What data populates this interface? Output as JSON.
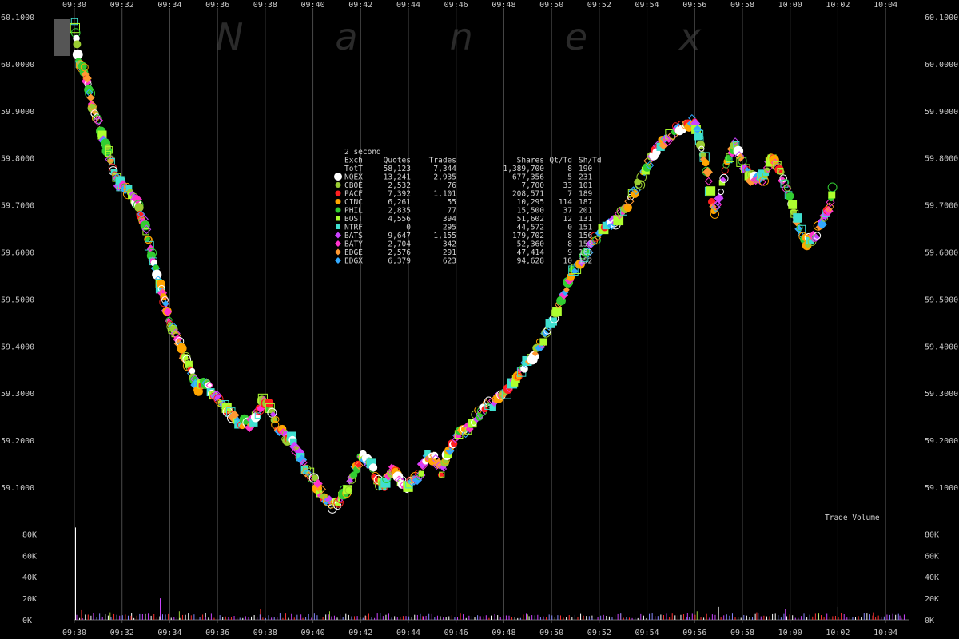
{
  "chart_data": {
    "type": "scatter",
    "watermark": "Nanex",
    "x_ticks": [
      "09:30",
      "09:32",
      "09:34",
      "09:36",
      "09:38",
      "09:40",
      "09:42",
      "09:44",
      "09:46",
      "09:48",
      "09:50",
      "09:52",
      "09:54",
      "09:56",
      "09:58",
      "10:00",
      "10:02",
      "10:04"
    ],
    "xlim_minutes": [
      0,
      35
    ],
    "y_ticks": [
      "60.1000",
      "60.0000",
      "59.9000",
      "59.8000",
      "59.7000",
      "59.6000",
      "59.5000",
      "59.4000",
      "59.3000",
      "59.2000",
      "59.1000"
    ],
    "ylim": [
      59.0,
      60.1
    ],
    "grid": true,
    "price_path": [
      [
        0.0,
        60.09
      ],
      [
        0.2,
        60.0
      ],
      [
        0.4,
        59.99
      ],
      [
        0.6,
        59.95
      ],
      [
        0.8,
        59.9
      ],
      [
        1.0,
        59.88
      ],
      [
        1.2,
        59.84
      ],
      [
        1.4,
        59.82
      ],
      [
        1.6,
        59.78
      ],
      [
        1.8,
        59.75
      ],
      [
        2.0,
        59.74
      ],
      [
        2.3,
        59.73
      ],
      [
        2.6,
        59.71
      ],
      [
        2.8,
        59.68
      ],
      [
        3.0,
        59.65
      ],
      [
        3.2,
        59.6
      ],
      [
        3.4,
        59.57
      ],
      [
        3.6,
        59.53
      ],
      [
        3.8,
        59.49
      ],
      [
        4.0,
        59.45
      ],
      [
        4.2,
        59.43
      ],
      [
        4.5,
        59.39
      ],
      [
        4.8,
        59.36
      ],
      [
        5.0,
        59.33
      ],
      [
        5.2,
        59.31
      ],
      [
        5.5,
        59.32
      ],
      [
        5.8,
        59.3
      ],
      [
        6.0,
        59.29
      ],
      [
        6.3,
        59.27
      ],
      [
        6.6,
        59.25
      ],
      [
        7.0,
        59.24
      ],
      [
        7.3,
        59.23
      ],
      [
        7.6,
        59.25
      ],
      [
        7.9,
        59.28
      ],
      [
        8.2,
        59.27
      ],
      [
        8.5,
        59.23
      ],
      [
        8.8,
        59.21
      ],
      [
        9.1,
        59.2
      ],
      [
        9.4,
        59.17
      ],
      [
        9.7,
        59.14
      ],
      [
        10.0,
        59.12
      ],
      [
        10.3,
        59.09
      ],
      [
        10.6,
        59.07
      ],
      [
        10.9,
        59.06
      ],
      [
        11.2,
        59.08
      ],
      [
        11.5,
        59.1
      ],
      [
        11.8,
        59.14
      ],
      [
        12.1,
        59.17
      ],
      [
        12.4,
        59.15
      ],
      [
        12.7,
        59.11
      ],
      [
        13.0,
        59.1
      ],
      [
        13.3,
        59.14
      ],
      [
        13.6,
        59.12
      ],
      [
        13.9,
        59.1
      ],
      [
        14.2,
        59.11
      ],
      [
        14.5,
        59.13
      ],
      [
        14.8,
        59.17
      ],
      [
        15.1,
        59.16
      ],
      [
        15.4,
        59.13
      ],
      [
        15.7,
        59.18
      ],
      [
        16.0,
        59.21
      ],
      [
        16.4,
        59.22
      ],
      [
        16.8,
        59.25
      ],
      [
        17.2,
        59.27
      ],
      [
        17.6,
        59.28
      ],
      [
        18.0,
        59.3
      ],
      [
        18.4,
        59.32
      ],
      [
        18.8,
        59.35
      ],
      [
        19.2,
        59.38
      ],
      [
        19.6,
        59.41
      ],
      [
        20.0,
        59.45
      ],
      [
        20.4,
        59.5
      ],
      [
        20.8,
        59.55
      ],
      [
        21.2,
        59.58
      ],
      [
        21.6,
        59.61
      ],
      [
        22.0,
        59.64
      ],
      [
        22.4,
        59.66
      ],
      [
        22.8,
        59.67
      ],
      [
        23.2,
        59.7
      ],
      [
        23.6,
        59.74
      ],
      [
        24.0,
        59.78
      ],
      [
        24.4,
        59.82
      ],
      [
        24.8,
        59.84
      ],
      [
        25.2,
        59.86
      ],
      [
        25.6,
        59.87
      ],
      [
        26.0,
        59.88
      ],
      [
        26.2,
        59.84
      ],
      [
        26.5,
        59.78
      ],
      [
        26.8,
        59.68
      ],
      [
        27.1,
        59.73
      ],
      [
        27.4,
        59.8
      ],
      [
        27.7,
        59.83
      ],
      [
        28.0,
        59.79
      ],
      [
        28.3,
        59.76
      ],
      [
        28.6,
        59.75
      ],
      [
        28.9,
        59.76
      ],
      [
        29.2,
        59.8
      ],
      [
        29.5,
        59.78
      ],
      [
        29.8,
        59.74
      ],
      [
        30.1,
        59.7
      ],
      [
        30.4,
        59.65
      ],
      [
        30.7,
        59.62
      ],
      [
        31.0,
        59.63
      ],
      [
        31.3,
        59.66
      ],
      [
        31.6,
        59.69
      ],
      [
        31.8,
        59.74
      ]
    ],
    "legend": {
      "interval_label": "2 second",
      "columns": [
        "Exch",
        "Quotes",
        "Trades",
        "Shares",
        "Qt/Td",
        "Sh/Td"
      ],
      "rows": [
        {
          "exch": "TotT",
          "quotes": "58,123",
          "trades": "7,344",
          "shares": "1,389,700",
          "qt_td": "8",
          "sh_td": "190",
          "color": "",
          "shape": "none"
        },
        {
          "exch": "NQEX",
          "quotes": "13,241",
          "trades": "2,935",
          "shares": "677,356",
          "qt_td": "5",
          "sh_td": "231",
          "color": "#ffffff",
          "shape": "circle"
        },
        {
          "exch": "CBOE",
          "quotes": "2,532",
          "trades": "76",
          "shares": "7,700",
          "qt_td": "33",
          "sh_td": "101",
          "color": "#9acd32",
          "shape": "circle"
        },
        {
          "exch": "PACF",
          "quotes": "7,392",
          "trades": "1,101",
          "shares": "208,571",
          "qt_td": "7",
          "sh_td": "189",
          "color": "#ff2020",
          "shape": "circle"
        },
        {
          "exch": "CINC",
          "quotes": "6,261",
          "trades": "55",
          "shares": "10,295",
          "qt_td": "114",
          "sh_td": "187",
          "color": "#ffa500",
          "shape": "circle"
        },
        {
          "exch": "PHIL",
          "quotes": "2,835",
          "trades": "77",
          "shares": "15,500",
          "qt_td": "37",
          "sh_td": "201",
          "color": "#32cd32",
          "shape": "circle"
        },
        {
          "exch": "BOST",
          "quotes": "4,556",
          "trades": "394",
          "shares": "51,602",
          "qt_td": "12",
          "sh_td": "131",
          "color": "#adff2f",
          "shape": "square"
        },
        {
          "exch": "NTRF",
          "quotes": "0",
          "trades": "295",
          "shares": "44,572",
          "qt_td": "0",
          "sh_td": "151",
          "color": "#40e0d0",
          "shape": "square"
        },
        {
          "exch": "BATS",
          "quotes": "9,647",
          "trades": "1,155",
          "shares": "179,702",
          "qt_td": "8",
          "sh_td": "156",
          "color": "#cc44ff",
          "shape": "diamond"
        },
        {
          "exch": "BATY",
          "quotes": "2,704",
          "trades": "342",
          "shares": "52,360",
          "qt_td": "8",
          "sh_td": "153",
          "color": "#ff33cc",
          "shape": "diamond"
        },
        {
          "exch": "EDGE",
          "quotes": "2,576",
          "trades": "291",
          "shares": "47,414",
          "qt_td": "9",
          "sh_td": "163",
          "color": "#ff9933",
          "shape": "diamond"
        },
        {
          "exch": "EDGX",
          "quotes": "6,379",
          "trades": "623",
          "shares": "94,628",
          "qt_td": "10",
          "sh_td": "152",
          "color": "#33aaff",
          "shape": "diamond"
        }
      ]
    },
    "volume": {
      "label": "Trade Volume",
      "y_ticks": [
        "80K",
        "60K",
        "40K",
        "20K",
        "0K"
      ],
      "ylim": [
        0,
        90000
      ],
      "bars": [
        [
          0.05,
          86000
        ],
        [
          0.3,
          9000
        ],
        [
          0.8,
          6000
        ],
        [
          1.5,
          7000
        ],
        [
          2.4,
          6500
        ],
        [
          3.3,
          4000
        ],
        [
          3.6,
          20000
        ],
        [
          4.4,
          8000
        ],
        [
          5.5,
          6000
        ],
        [
          7.8,
          10000
        ],
        [
          9.5,
          5000
        ],
        [
          10.7,
          8000
        ],
        [
          12.2,
          4000
        ],
        [
          14.6,
          3500
        ],
        [
          16.3,
          4500
        ],
        [
          19.0,
          5000
        ],
        [
          21.7,
          4000
        ],
        [
          22.9,
          5500
        ],
        [
          25.7,
          6000
        ],
        [
          26.1,
          8000
        ],
        [
          27.0,
          12000
        ],
        [
          28.6,
          7000
        ],
        [
          29.8,
          10000
        ],
        [
          31.2,
          6000
        ],
        [
          32.0,
          12000
        ],
        [
          33.5,
          7000
        ],
        [
          34.6,
          4000
        ]
      ]
    }
  }
}
